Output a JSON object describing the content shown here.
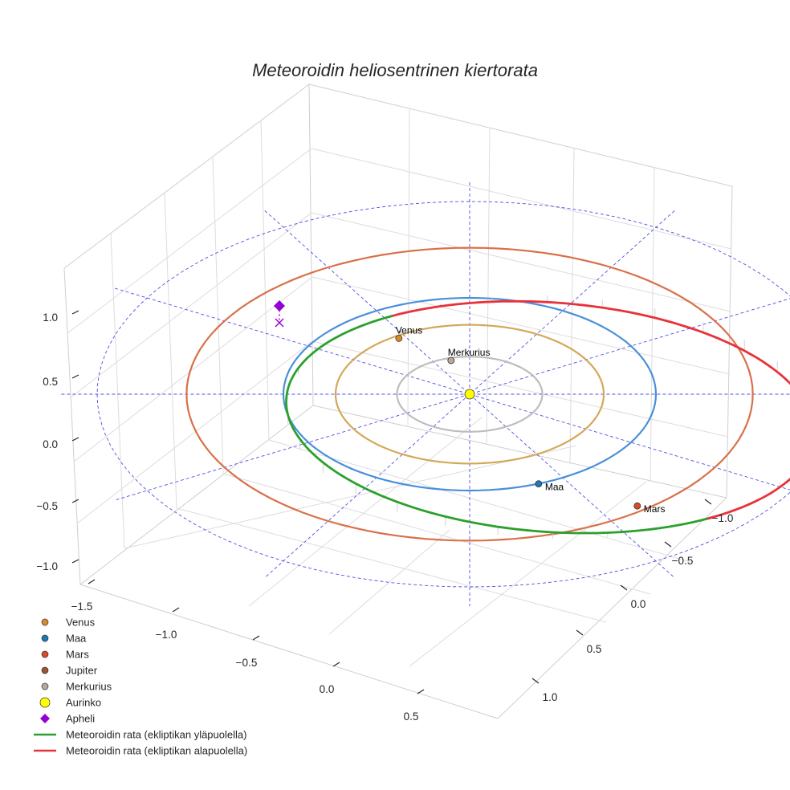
{
  "chart_data": {
    "type": "scatter3d-orbit",
    "title": "Meteoroidin heliosentrinen kiertorata",
    "axes": {
      "x": {
        "ticks": [
          "−1.5",
          "−1.0",
          "−0.5",
          "0.0",
          "0.5"
        ]
      },
      "y": {
        "ticks": [
          "−1.0",
          "−0.5",
          "0.0",
          "0.5",
          "1.0"
        ]
      },
      "z": {
        "ticks": [
          "−1.0",
          "−0.5",
          "0.0",
          "0.5",
          "1.0"
        ]
      }
    },
    "bodies": [
      {
        "name": "Aurinko",
        "x": 0.0,
        "y": 0.0,
        "color": "#ffff00",
        "label": ""
      },
      {
        "name": "Merkurius",
        "x": -0.1,
        "y": 0.35,
        "orbit_radius": 0.39,
        "color": "#b8a8a0",
        "orbit_color": "#bdbdbd",
        "label": "Merkurius"
      },
      {
        "name": "Venus",
        "x": -0.38,
        "y": 0.58,
        "orbit_radius": 0.72,
        "color": "#d98b2b",
        "orbit_color": "#d4a85a",
        "label": "Venus"
      },
      {
        "name": "Maa",
        "x": 0.37,
        "y": -0.93,
        "orbit_radius": 1.0,
        "color": "#1f77b4",
        "orbit_color": "#4a90d9",
        "label": "Maa"
      },
      {
        "name": "Mars",
        "x": 0.9,
        "y": -1.16,
        "orbit_radius": 1.52,
        "color": "#d94a2b",
        "orbit_color": "#d9704a",
        "label": "Mars"
      },
      {
        "name": "Jupiter",
        "color": "#a0522d",
        "label": ""
      }
    ],
    "meteoroid_orbit": {
      "semi_major_axis": 1.47,
      "eccentricity": 0.35,
      "aphelion": "Apheli"
    },
    "legend": [
      {
        "label": "Venus",
        "marker": "circle",
        "color": "#d98b2b"
      },
      {
        "label": "Maa",
        "marker": "circle",
        "color": "#1f77b4"
      },
      {
        "label": "Mars",
        "marker": "circle",
        "color": "#d94a2b"
      },
      {
        "label": "Jupiter",
        "marker": "circle",
        "color": "#a0522d"
      },
      {
        "label": "Merkurius",
        "marker": "circle",
        "color": "#b8a8a0"
      },
      {
        "label": "Aurinko",
        "marker": "circle-large",
        "color": "#ffff00"
      },
      {
        "label": "Apheli",
        "marker": "diamond",
        "color": "#9400d3"
      },
      {
        "label": "Meteoroidin rata (ekliptikan yläpuolella)",
        "marker": "line",
        "color": "#2ca02c"
      },
      {
        "label": "Meteoroidin rata (ekliptikan alapuolella)",
        "marker": "line",
        "color": "#e8323a"
      }
    ],
    "colors": {
      "grid": "#d5d5d5",
      "ecliptic_grid": "#5050e0",
      "orbit_above": "#2ca02c",
      "orbit_below": "#e8323a",
      "aphelion": "#9400d3"
    }
  }
}
